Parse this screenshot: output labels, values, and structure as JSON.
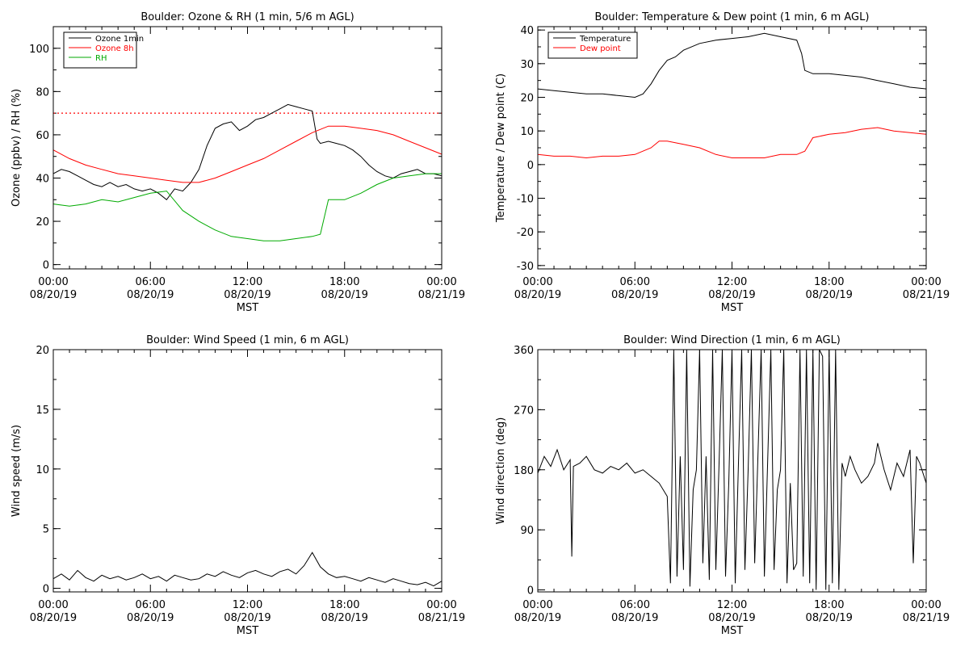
{
  "colors": {
    "black": "#000000",
    "red": "#ff0000",
    "green": "#00aa00"
  },
  "shared": {
    "x_ticks": [
      "00:00\n08/20/19",
      "06:00\n08/20/19",
      "12:00\n08/20/19",
      "18:00\n08/20/19",
      "00:00\n08/21/19"
    ],
    "x_label": "MST"
  },
  "chart_data": [
    {
      "id": "ozone_rh",
      "type": "line",
      "title": "Boulder: Ozone & RH (1 min, 5/6 m AGL)",
      "ylabel": "Ozone (ppbv) / RH (%)",
      "xlabel": "MST",
      "x_unit": "hours since 08/20/19 00:00",
      "xlim": [
        0,
        24
      ],
      "ylim": [
        -2,
        110
      ],
      "y_ticks": [
        0,
        20,
        40,
        60,
        80,
        100
      ],
      "legend_position": "top-left",
      "reference_line": {
        "y": 70,
        "style": "dotted",
        "color": "#ff0000"
      },
      "series": [
        {
          "name": "Ozone 1min",
          "color": "#000000",
          "x": [
            0,
            0.5,
            1,
            1.5,
            2,
            2.5,
            3,
            3.5,
            4,
            4.5,
            5,
            5.5,
            6,
            6.5,
            7,
            7.5,
            8,
            8.5,
            9,
            9.5,
            10,
            10.5,
            11,
            11.5,
            12,
            12.5,
            13,
            13.5,
            14,
            14.5,
            15,
            15.5,
            16,
            16.3,
            16.5,
            17,
            17.5,
            18,
            18.5,
            19,
            19.5,
            20,
            20.5,
            21,
            21.5,
            22,
            22.5,
            23,
            23.5,
            24
          ],
          "values": [
            42,
            44,
            43,
            41,
            39,
            37,
            36,
            38,
            36,
            37,
            35,
            34,
            35,
            33,
            30,
            35,
            34,
            38,
            44,
            55,
            63,
            65,
            66,
            62,
            64,
            67,
            68,
            70,
            72,
            74,
            73,
            72,
            71,
            58,
            56,
            57,
            56,
            55,
            53,
            50,
            46,
            43,
            41,
            40,
            42,
            43,
            44,
            42,
            42,
            41
          ]
        },
        {
          "name": "Ozone 8h",
          "color": "#ff0000",
          "x": [
            0,
            1,
            2,
            3,
            4,
            5,
            6,
            7,
            8,
            9,
            10,
            11,
            12,
            13,
            14,
            15,
            16,
            17,
            18,
            19,
            20,
            21,
            22,
            23,
            24
          ],
          "values": [
            53,
            49,
            46,
            44,
            42,
            41,
            40,
            39,
            38,
            38,
            40,
            43,
            46,
            49,
            53,
            57,
            61,
            64,
            64,
            63,
            62,
            60,
            57,
            54,
            51
          ]
        },
        {
          "name": "RH",
          "color": "#00aa00",
          "x": [
            0,
            1,
            2,
            3,
            4,
            5,
            6,
            7,
            8,
            9,
            10,
            11,
            12,
            13,
            14,
            15,
            16,
            16.5,
            17,
            18,
            19,
            20,
            21,
            22,
            23,
            24
          ],
          "values": [
            28,
            27,
            28,
            30,
            29,
            31,
            33,
            34,
            25,
            20,
            16,
            13,
            12,
            11,
            11,
            12,
            13,
            14,
            30,
            30,
            33,
            37,
            40,
            41,
            42,
            42
          ]
        }
      ]
    },
    {
      "id": "temp_dew",
      "type": "line",
      "title": "Boulder: Temperature & Dew point (1 min, 6 m AGL)",
      "ylabel": "Temperature / Dew point (C)",
      "xlabel": "MST",
      "x_unit": "hours since 08/20/19 00:00",
      "xlim": [
        0,
        24
      ],
      "ylim": [
        -31,
        41
      ],
      "y_ticks": [
        -30,
        -20,
        -10,
        0,
        10,
        20,
        30,
        40
      ],
      "legend_position": "top-left",
      "series": [
        {
          "name": "Temperature",
          "color": "#000000",
          "x": [
            0,
            1,
            2,
            3,
            4,
            5,
            6,
            6.5,
            7,
            7.5,
            8,
            8.5,
            9,
            10,
            11,
            12,
            13,
            14,
            15,
            16,
            16.3,
            16.5,
            17,
            18,
            19,
            20,
            21,
            22,
            23,
            24
          ],
          "values": [
            22.5,
            22,
            21.5,
            21,
            21,
            20.5,
            20,
            21,
            24,
            28,
            31,
            32,
            34,
            36,
            37,
            37.5,
            38,
            39,
            38,
            37,
            33,
            28,
            27,
            27,
            26.5,
            26,
            25,
            24,
            23,
            22.5
          ]
        },
        {
          "name": "Dew point",
          "color": "#ff0000",
          "x": [
            0,
            1,
            2,
            3,
            4,
            5,
            6,
            7,
            7.5,
            8,
            9,
            10,
            11,
            12,
            13,
            14,
            15,
            16,
            16.5,
            17,
            18,
            19,
            20,
            21,
            22,
            23,
            24
          ],
          "values": [
            3,
            2.5,
            2.5,
            2,
            2.5,
            2.5,
            3,
            5,
            7,
            7,
            6,
            5,
            3,
            2,
            2,
            2,
            3,
            3,
            4,
            8,
            9,
            9.5,
            10.5,
            11,
            10,
            9.5,
            9
          ]
        }
      ]
    },
    {
      "id": "wind_speed",
      "type": "line",
      "title": "Boulder: Wind Speed (1 min, 6 m AGL)",
      "ylabel": "Wind speed (m/s)",
      "xlabel": "MST",
      "x_unit": "hours since 08/20/19 00:00",
      "xlim": [
        0,
        24
      ],
      "ylim": [
        -0.3,
        20
      ],
      "y_ticks": [
        0,
        5,
        10,
        15,
        20
      ],
      "series": [
        {
          "color": "#000000",
          "x": [
            0,
            0.5,
            1,
            1.5,
            2,
            2.5,
            3,
            3.5,
            4,
            4.5,
            5,
            5.5,
            6,
            6.5,
            7,
            7.5,
            8,
            8.5,
            9,
            9.5,
            10,
            10.5,
            11,
            11.5,
            12,
            12.5,
            13,
            13.5,
            14,
            14.5,
            15,
            15.5,
            16,
            16.5,
            17,
            17.5,
            18,
            18.5,
            19,
            19.5,
            20,
            20.5,
            21,
            21.5,
            22,
            22.5,
            23,
            23.5,
            24
          ],
          "values": [
            0.8,
            1.2,
            0.7,
            1.5,
            0.9,
            0.6,
            1.1,
            0.8,
            1.0,
            0.7,
            0.9,
            1.2,
            0.8,
            1.0,
            0.6,
            1.1,
            0.9,
            0.7,
            0.8,
            1.2,
            1.0,
            1.4,
            1.1,
            0.9,
            1.3,
            1.5,
            1.2,
            1.0,
            1.4,
            1.6,
            1.2,
            1.9,
            3.0,
            1.8,
            1.2,
            0.9,
            1.0,
            0.8,
            0.6,
            0.9,
            0.7,
            0.5,
            0.8,
            0.6,
            0.4,
            0.3,
            0.5,
            0.2,
            0.6
          ]
        }
      ]
    },
    {
      "id": "wind_dir",
      "type": "line",
      "title": "Boulder: Wind Direction (1 min, 6 m AGL)",
      "ylabel": "Wind direction (deg)",
      "xlabel": "MST",
      "x_unit": "hours since 08/20/19 00:00",
      "xlim": [
        0,
        24
      ],
      "ylim": [
        -3,
        360
      ],
      "y_ticks": [
        0,
        90,
        180,
        270,
        360
      ],
      "series": [
        {
          "color": "#000000",
          "x": [
            0,
            0.4,
            0.8,
            1.2,
            1.6,
            2,
            2.1,
            2.2,
            2.6,
            3,
            3.5,
            4,
            4.5,
            5,
            5.5,
            6,
            6.5,
            7,
            7.5,
            8,
            8.2,
            8.4,
            8.6,
            8.8,
            9,
            9.2,
            9.4,
            9.6,
            9.8,
            10,
            10.2,
            10.4,
            10.6,
            10.8,
            11,
            11.2,
            11.4,
            11.6,
            11.8,
            12,
            12.2,
            12.4,
            12.6,
            12.8,
            13,
            13.2,
            13.4,
            13.6,
            13.8,
            14,
            14.2,
            14.4,
            14.6,
            14.8,
            15,
            15.2,
            15.4,
            15.6,
            15.8,
            16,
            16.2,
            16.4,
            16.6,
            16.8,
            17,
            17.2,
            17.4,
            17.6,
            17.8,
            18,
            18.2,
            18.4,
            18.6,
            18.8,
            19,
            19.3,
            19.6,
            20,
            20.4,
            20.8,
            21,
            21.4,
            21.8,
            22.2,
            22.6,
            23,
            23.2,
            23.4,
            23.6,
            24
          ],
          "values": [
            175,
            200,
            185,
            210,
            180,
            195,
            50,
            185,
            190,
            200,
            180,
            175,
            185,
            180,
            190,
            175,
            180,
            170,
            160,
            140,
            10,
            360,
            20,
            200,
            30,
            360,
            5,
            150,
            180,
            360,
            40,
            200,
            15,
            360,
            30,
            190,
            360,
            20,
            160,
            360,
            10,
            190,
            360,
            30,
            180,
            360,
            40,
            200,
            360,
            20,
            190,
            360,
            30,
            150,
            180,
            360,
            10,
            160,
            30,
            40,
            360,
            20,
            360,
            10,
            360,
            0,
            360,
            350,
            0,
            360,
            10,
            360,
            0,
            190,
            170,
            200,
            180,
            160,
            170,
            190,
            220,
            180,
            150,
            190,
            170,
            210,
            40,
            200,
            190,
            160
          ]
        }
      ]
    }
  ]
}
